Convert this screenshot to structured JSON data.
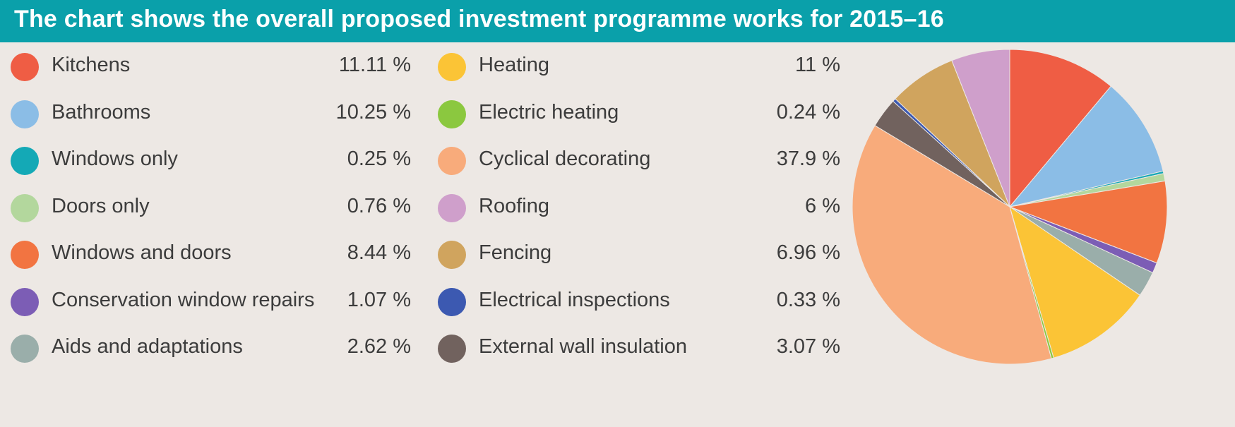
{
  "header": {
    "title": "The chart shows the overall proposed investment programme works for 2015–16"
  },
  "legend": {
    "columns": [
      [
        {
          "label": "Kitchens",
          "value_text": "11.11 %"
        },
        {
          "label": "Bathrooms",
          "value_text": "10.25 %"
        },
        {
          "label": "Windows only",
          "value_text": "0.25 %"
        },
        {
          "label": "Doors only",
          "value_text": "0.76 %"
        },
        {
          "label": "Windows and doors",
          "value_text": "8.44 %"
        },
        {
          "label": "Conservation window repairs",
          "value_text": "1.07 %"
        },
        {
          "label": "Aids and adaptations",
          "value_text": "2.62 %"
        }
      ],
      [
        {
          "label": "Heating",
          "value_text": "11 %"
        },
        {
          "label": "Electric heating",
          "value_text": "0.24 %"
        },
        {
          "label": "Cyclical decorating",
          "value_text": "37.9 %"
        },
        {
          "label": "Roofing",
          "value_text": "6 %"
        },
        {
          "label": "Fencing",
          "value_text": "6.96 %"
        },
        {
          "label": "Electrical inspections",
          "value_text": "0.33 %"
        },
        {
          "label": "External wall insulation",
          "value_text": "3.07 %"
        }
      ]
    ]
  },
  "chart_data": {
    "type": "pie",
    "title": "The chart shows the overall proposed investment programme works for 2015–16",
    "categories": [
      "Kitchens",
      "Bathrooms",
      "Windows only",
      "Doors only",
      "Windows and doors",
      "Conservation window repairs",
      "Aids and adaptations",
      "Heating",
      "Electric heating",
      "Cyclical decorating",
      "External wall insulation",
      "Electrical inspections",
      "Fencing",
      "Roofing"
    ],
    "values": [
      11.11,
      10.25,
      0.25,
      0.76,
      8.44,
      1.07,
      2.62,
      11,
      0.24,
      37.9,
      3.07,
      0.33,
      6.96,
      6
    ],
    "colors": [
      "#ef5d44",
      "#8bbde6",
      "#14a9b6",
      "#b3d79d",
      "#f27441",
      "#7c5db5",
      "#9aaeaa",
      "#fbc436",
      "#8bc83f",
      "#f8ab7b",
      "#71625e",
      "#3c59b1",
      "#d0a45e",
      "#cf9fcb"
    ],
    "start": "12 o'clock",
    "direction": "clockwise"
  }
}
